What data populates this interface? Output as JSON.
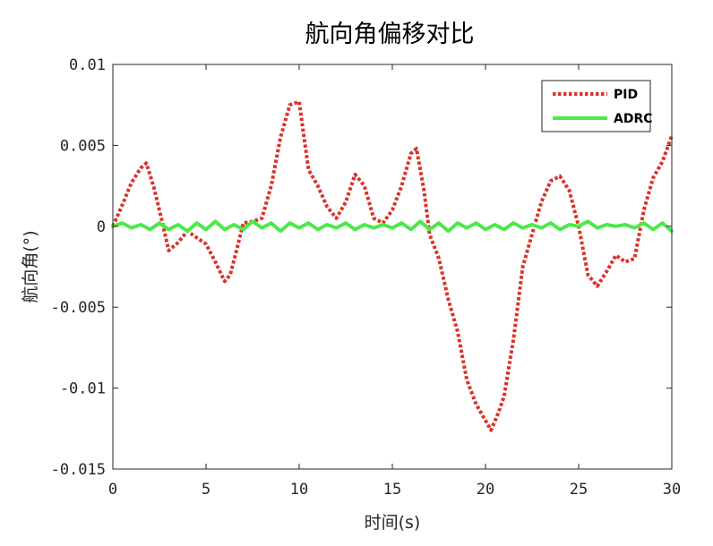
{
  "chart_data": {
    "type": "line",
    "title": "航向角偏移对比",
    "xlabel": "时间(s)",
    "ylabel": "航向角(°)",
    "xlim": [
      0,
      30
    ],
    "ylim": [
      -0.015,
      0.01
    ],
    "xticks": [
      0,
      5,
      10,
      15,
      20,
      25,
      30
    ],
    "xtick_labels": [
      "0",
      "5",
      "10",
      "15",
      "20",
      "25",
      "30"
    ],
    "yticks": [
      0.01,
      0.005,
      0,
      -0.005,
      -0.01,
      -0.015
    ],
    "ytick_labels": [
      "0.01",
      "0.005",
      "0",
      "-0.005",
      "-0.01",
      "-0.015"
    ],
    "grid": false,
    "legend_position": "top-right",
    "series": [
      {
        "name": "PID",
        "color": "#d9332a",
        "style": "dotted",
        "x": [
          0,
          0.5,
          1.0,
          1.5,
          1.8,
          2.2,
          2.6,
          3.0,
          3.5,
          4.0,
          4.5,
          5.0,
          5.5,
          6.0,
          6.3,
          6.7,
          7.0,
          7.5,
          8.0,
          8.5,
          9.0,
          9.5,
          10.0,
          10.5,
          11.0,
          11.5,
          12.0,
          12.5,
          13.0,
          13.5,
          14.0,
          14.5,
          15.0,
          15.5,
          16.0,
          16.3,
          16.7,
          17.0,
          17.5,
          18.0,
          18.5,
          19.0,
          19.5,
          20.0,
          20.3,
          20.7,
          21.0,
          21.5,
          22.0,
          22.5,
          23.0,
          23.5,
          24.0,
          24.5,
          25.0,
          25.5,
          26.0,
          26.5,
          27.0,
          27.5,
          28.0,
          28.5,
          29.0,
          29.5,
          30.0
        ],
        "values": [
          0,
          0.0013,
          0.0027,
          0.0036,
          0.0039,
          0.0024,
          0.0005,
          -0.0015,
          -0.001,
          -0.0003,
          -0.0007,
          -0.0011,
          -0.0022,
          -0.0034,
          -0.003,
          -0.0012,
          0.0002,
          0.0003,
          0.0005,
          0.0025,
          0.0055,
          0.0075,
          0.0077,
          0.0035,
          0.0025,
          0.0012,
          0.0005,
          0.0015,
          0.0032,
          0.0025,
          0.0005,
          0.0002,
          0.001,
          0.0025,
          0.0045,
          0.0048,
          0.0022,
          -0.0005,
          -0.002,
          -0.0045,
          -0.0065,
          -0.0095,
          -0.011,
          -0.012,
          -0.0126,
          -0.0115,
          -0.0105,
          -0.007,
          -0.0025,
          -0.0005,
          0.0015,
          0.0028,
          0.0031,
          0.0022,
          0.0,
          -0.003,
          -0.0037,
          -0.0028,
          -0.0018,
          -0.0022,
          -0.002,
          0.001,
          0.003,
          0.004,
          0.0056
        ]
      },
      {
        "name": "ADRC",
        "color": "#4de84a",
        "style": "solid",
        "x": [
          0,
          0.5,
          1.0,
          1.5,
          2.0,
          2.5,
          3.0,
          3.5,
          4.0,
          4.5,
          5.0,
          5.5,
          6.0,
          6.5,
          7.0,
          7.5,
          8.0,
          8.5,
          9.0,
          9.5,
          10.0,
          10.5,
          11.0,
          11.5,
          12.0,
          12.5,
          13.0,
          13.5,
          14.0,
          14.5,
          15.0,
          15.5,
          16.0,
          16.5,
          17.0,
          17.5,
          18.0,
          18.5,
          19.0,
          19.5,
          20.0,
          20.5,
          21.0,
          21.5,
          22.0,
          22.5,
          23.0,
          23.5,
          24.0,
          24.5,
          25.0,
          25.5,
          26.0,
          26.5,
          27.0,
          27.5,
          28.0,
          28.5,
          29.0,
          29.5,
          30.0
        ],
        "values": [
          0,
          0.0002,
          -0.0001,
          0.0001,
          -0.0002,
          0.0002,
          -0.0002,
          0.0001,
          -0.0003,
          0.0002,
          -0.0002,
          0.0003,
          -0.0002,
          0.0001,
          -0.0002,
          0.0003,
          -0.0001,
          0.0002,
          -0.0003,
          0.0002,
          -0.0001,
          0.0002,
          -0.0002,
          0.0001,
          -0.0001,
          0.0002,
          -0.0002,
          0.0001,
          -0.0001,
          0.0001,
          -0.0001,
          0.0002,
          -0.0002,
          0.0003,
          -0.0002,
          0.0002,
          -0.0003,
          0.0002,
          -0.0001,
          0.0002,
          -0.0002,
          0.0001,
          -0.0002,
          0.0002,
          -0.0001,
          0.0001,
          -0.0001,
          0.0002,
          -0.0002,
          0.0001,
          0.0,
          0.0003,
          -0.0001,
          0.0001,
          0.0,
          0.0001,
          -0.0001,
          0.0002,
          -0.0002,
          0.0002,
          -0.0003
        ]
      }
    ]
  }
}
